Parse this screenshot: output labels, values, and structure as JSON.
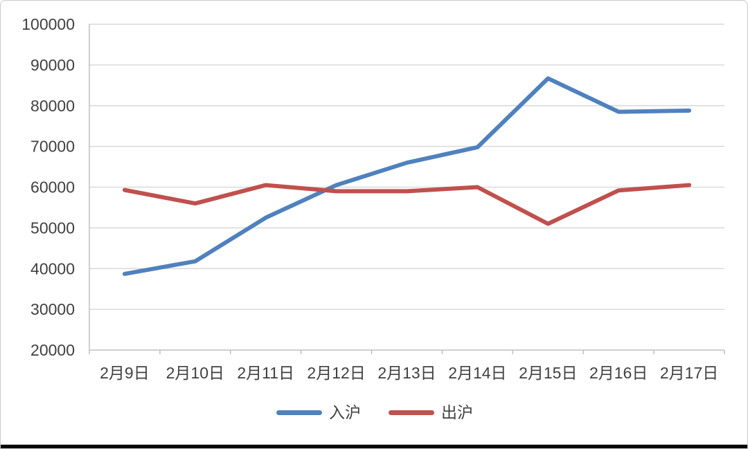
{
  "chart_data": {
    "type": "line",
    "title": "",
    "xlabel": "",
    "ylabel": "",
    "categories": [
      "2月9日",
      "2月10日",
      "2月11日",
      "2月12日",
      "2月13日",
      "2月14日",
      "2月15日",
      "2月16日",
      "2月17日"
    ],
    "series": [
      {
        "name": "入沪",
        "color": "#4F81BD",
        "values": [
          38700,
          41800,
          52500,
          60500,
          66000,
          69800,
          86700,
          78500,
          78800
        ]
      },
      {
        "name": "出沪",
        "color": "#C0504D",
        "values": [
          59300,
          56000,
          60500,
          59000,
          59000,
          60000,
          51000,
          59200,
          60500
        ]
      }
    ],
    "ylim": [
      20000,
      100000
    ],
    "yticks": [
      20000,
      30000,
      40000,
      50000,
      60000,
      70000,
      80000,
      90000,
      100000
    ],
    "grid": "horizontal-only",
    "legend_position": "bottom-center",
    "colors": {
      "gridline": "#d9d9d9",
      "axis_line": "#bfbfbf",
      "axis_text": "#3f3f3f",
      "background": "#ffffff"
    }
  }
}
